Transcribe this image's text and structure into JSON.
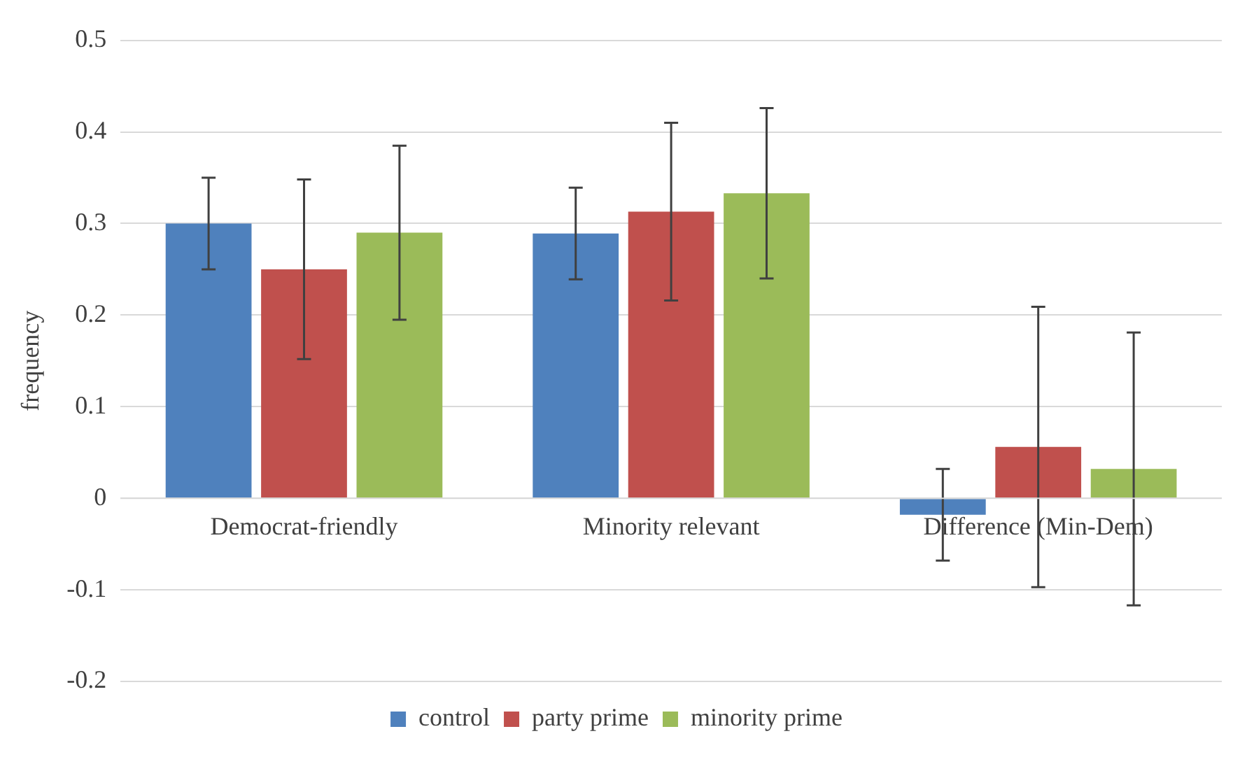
{
  "chart_data": {
    "type": "bar",
    "ylabel": "frequency",
    "categories": [
      "Democrat-friendly",
      "Minority relevant",
      "Difference (Min-Dem)"
    ],
    "series": [
      {
        "name": "control",
        "color": "#4f81bd",
        "values": [
          0.3,
          0.289,
          -0.018
        ],
        "errors": [
          0.05,
          0.05,
          0.05
        ]
      },
      {
        "name": "party prime",
        "color": "#c0504d",
        "values": [
          0.25,
          0.313,
          0.056
        ],
        "errors": [
          0.098,
          0.097,
          0.153
        ]
      },
      {
        "name": "minority prime",
        "color": "#9bbb59",
        "values": [
          0.29,
          0.333,
          0.032
        ],
        "errors": [
          0.095,
          0.093,
          0.149
        ]
      }
    ],
    "ylim": [
      -0.2,
      0.5
    ],
    "yticks": [
      -0.2,
      -0.1,
      0,
      0.1,
      0.2,
      0.3,
      0.4,
      0.5
    ],
    "grid": "y",
    "legend": "bottom"
  }
}
